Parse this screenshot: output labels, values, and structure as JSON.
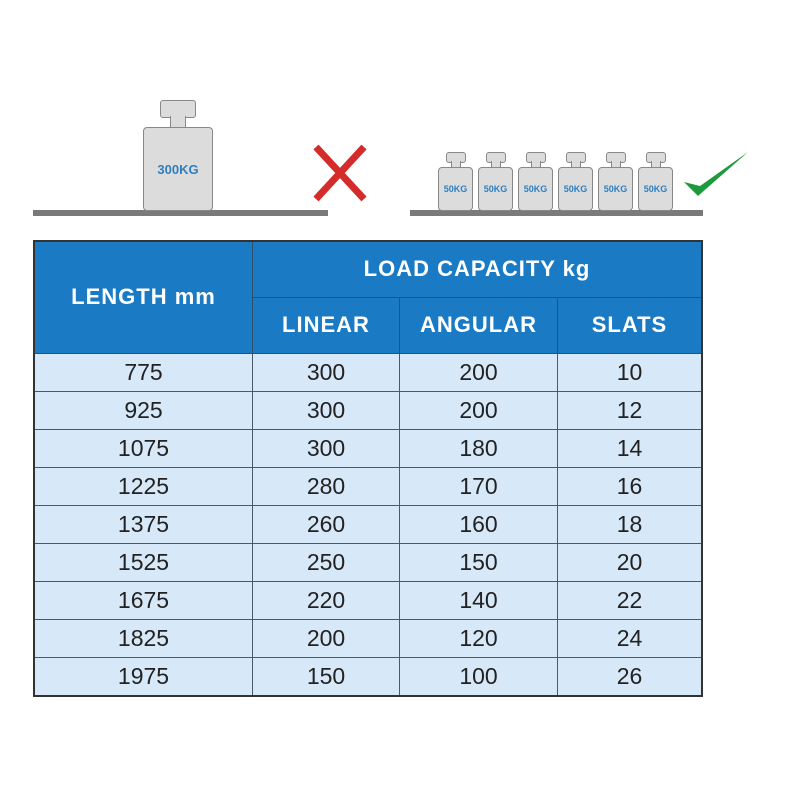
{
  "illustration": {
    "wrong": {
      "label": "300KG",
      "icon": "red-cross-icon",
      "color": "#d42b2b"
    },
    "right": {
      "labels": [
        "50KG",
        "50KG",
        "50KG",
        "50KG",
        "50KG",
        "50KG"
      ],
      "icon": "green-check-icon",
      "color": "#1e9a3c"
    }
  },
  "table": {
    "header_color": "#1a7ac4",
    "row_color": "#d7e9f8",
    "length_header": "LENGTH mm",
    "group_header": "LOAD CAPACITY kg",
    "sub_headers": [
      "LINEAR",
      "ANGULAR",
      "SLATS"
    ],
    "rows": [
      [
        "775",
        "300",
        "200",
        "10"
      ],
      [
        "925",
        "300",
        "200",
        "12"
      ],
      [
        "1075",
        "300",
        "180",
        "14"
      ],
      [
        "1225",
        "280",
        "170",
        "16"
      ],
      [
        "1375",
        "260",
        "160",
        "18"
      ],
      [
        "1525",
        "250",
        "150",
        "20"
      ],
      [
        "1675",
        "220",
        "140",
        "22"
      ],
      [
        "1825",
        "200",
        "120",
        "24"
      ],
      [
        "1975",
        "150",
        "100",
        "26"
      ]
    ]
  }
}
